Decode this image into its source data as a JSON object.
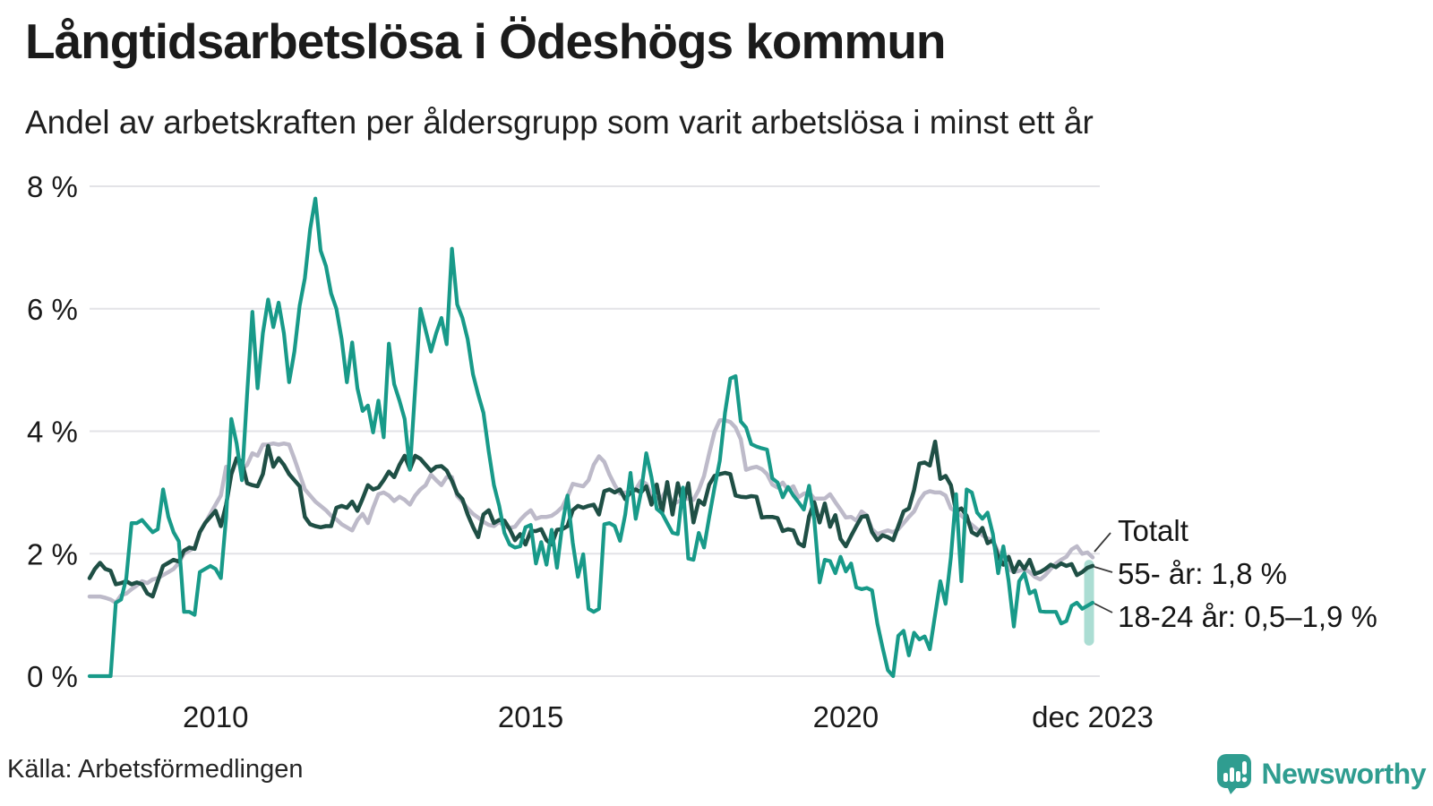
{
  "title": "Långtidsarbetslösa i Ödeshögs kommun",
  "subtitle": "Andel av arbetskraften per åldersgrupp som varit arbetslösa i minst ett år",
  "source": "Källa: Arbetsförmedlingen",
  "branding": {
    "name": "Newsworthy",
    "color": "#2f9d90",
    "icon": "bar-chart-speech-bubble"
  },
  "chart_data": {
    "type": "line",
    "unit": "%",
    "frequency": "monthly",
    "x_start": "2008-01",
    "x_end": "2023-12",
    "ylim": [
      0,
      8
    ],
    "grid": "horizontal",
    "legend_position": "end-of-line-labels",
    "yticks": [
      {
        "value": 0,
        "label": "0 %"
      },
      {
        "value": 2,
        "label": "2 %"
      },
      {
        "value": 4,
        "label": "4 %"
      },
      {
        "value": 6,
        "label": "6 %"
      },
      {
        "value": 8,
        "label": "8 %"
      }
    ],
    "xticks": [
      {
        "month_index": 24,
        "label": "2010"
      },
      {
        "month_index": 84,
        "label": "2015"
      },
      {
        "month_index": 144,
        "label": "2020"
      },
      {
        "month_index": 191,
        "label": "dec 2023"
      }
    ],
    "annotations": [
      {
        "series": "Totalt",
        "label": "Totalt"
      },
      {
        "series": "55- år",
        "label": "55- år: 1,8 %"
      },
      {
        "series": "18-24 år",
        "label": "18-24 år: 0,5–1,9 %"
      }
    ],
    "uncertainty_band": {
      "series": "18-24 år",
      "range": [
        0.5,
        1.9
      ],
      "color": "#a6dbd1"
    },
    "series": [
      {
        "name": "Totalt",
        "color": "#bdbac9",
        "stroke_width": 4.5,
        "values": [
          1.3,
          1.3,
          1.3,
          1.28,
          1.25,
          1.2,
          1.32,
          1.35,
          1.42,
          1.48,
          1.55,
          1.52,
          1.58,
          1.6,
          1.65,
          1.7,
          1.75,
          1.85,
          2.0,
          2.05,
          2.1,
          2.35,
          2.5,
          2.65,
          2.8,
          2.95,
          3.42,
          3.3,
          3.54,
          3.38,
          3.45,
          3.64,
          3.6,
          3.78,
          3.78,
          3.8,
          3.78,
          3.8,
          3.78,
          3.55,
          3.3,
          3.05,
          2.95,
          2.85,
          2.78,
          2.71,
          2.62,
          2.56,
          2.48,
          2.43,
          2.38,
          2.55,
          2.65,
          2.5,
          2.75,
          2.97,
          3.0,
          2.95,
          2.86,
          2.93,
          2.88,
          2.8,
          2.95,
          3.05,
          3.12,
          3.29,
          3.2,
          3.12,
          3.25,
          3.25,
          2.94,
          2.85,
          2.74,
          2.65,
          2.59,
          2.52,
          2.47,
          2.45,
          2.52,
          2.45,
          2.42,
          2.44,
          2.55,
          2.64,
          2.71,
          2.57,
          2.6,
          2.6,
          2.62,
          2.68,
          2.76,
          2.93,
          3.14,
          3.12,
          3.1,
          3.2,
          3.45,
          3.59,
          3.5,
          3.29,
          3.12,
          2.98,
          3.0,
          3.0,
          3.05,
          3.19,
          3.14,
          2.95,
          2.9,
          2.92,
          3.06,
          2.8,
          2.85,
          2.88,
          2.9,
          2.88,
          3.04,
          3.27,
          3.64,
          3.99,
          4.18,
          4.18,
          4.15,
          4.06,
          3.87,
          3.37,
          3.4,
          3.42,
          3.38,
          3.3,
          3.13,
          3.08,
          3.16,
          3.04,
          3.1,
          2.92,
          2.98,
          3.0,
          2.9,
          2.9,
          2.9,
          2.97,
          2.84,
          2.72,
          2.59,
          2.6,
          2.54,
          2.69,
          2.62,
          2.4,
          2.32,
          2.35,
          2.38,
          2.35,
          2.4,
          2.5,
          2.6,
          2.69,
          2.87,
          2.99,
          3.02,
          3.0,
          3.0,
          2.95,
          2.74,
          2.69,
          2.62,
          2.55,
          2.47,
          2.4,
          2.3,
          2.25,
          2.22,
          2.03,
          1.95,
          1.75,
          1.7,
          1.72,
          1.75,
          1.7,
          1.62,
          1.58,
          1.65,
          1.75,
          1.84,
          1.9,
          1.95,
          2.07,
          2.12,
          2.0,
          2.02,
          1.94
        ]
      },
      {
        "name": "55- år",
        "color": "#1f4f45",
        "stroke_width": 4.5,
        "values": [
          1.6,
          1.75,
          1.85,
          1.75,
          1.72,
          1.5,
          1.52,
          1.55,
          1.5,
          1.53,
          1.5,
          1.35,
          1.3,
          1.55,
          1.8,
          1.85,
          1.9,
          1.87,
          2.05,
          2.1,
          2.08,
          2.35,
          2.5,
          2.6,
          2.7,
          2.45,
          2.8,
          3.3,
          3.56,
          3.5,
          3.15,
          3.12,
          3.1,
          3.3,
          3.76,
          3.42,
          3.56,
          3.45,
          3.3,
          3.2,
          3.1,
          2.6,
          2.48,
          2.45,
          2.43,
          2.45,
          2.45,
          2.75,
          2.78,
          2.75,
          2.85,
          2.7,
          2.9,
          3.12,
          3.05,
          3.08,
          3.2,
          3.34,
          3.25,
          3.45,
          3.6,
          3.38,
          3.6,
          3.55,
          3.45,
          3.35,
          3.42,
          3.43,
          3.36,
          3.19,
          2.98,
          2.89,
          2.64,
          2.44,
          2.27,
          2.64,
          2.71,
          2.5,
          2.55,
          2.54,
          2.4,
          2.22,
          2.32,
          2.15,
          2.37,
          2.37,
          2.4,
          2.22,
          2.15,
          2.39,
          2.4,
          2.45,
          2.71,
          2.78,
          2.75,
          2.78,
          2.8,
          2.64,
          3.02,
          3.05,
          3.0,
          3.05,
          2.89,
          3.0,
          3.05,
          3.0,
          3.1,
          2.8,
          3.13,
          2.66,
          3.17,
          2.64,
          3.15,
          2.8,
          3.15,
          2.51,
          2.87,
          2.8,
          3.13,
          3.27,
          3.3,
          3.32,
          3.3,
          2.95,
          2.93,
          2.92,
          2.94,
          2.93,
          2.59,
          2.6,
          2.6,
          2.58,
          2.37,
          2.4,
          2.38,
          2.17,
          2.12,
          2.61,
          2.84,
          2.51,
          2.82,
          2.44,
          2.63,
          2.24,
          2.12,
          2.29,
          2.45,
          2.6,
          2.62,
          2.35,
          2.22,
          2.3,
          2.27,
          2.22,
          2.45,
          2.69,
          2.74,
          3.04,
          3.47,
          3.49,
          3.44,
          3.83,
          3.22,
          3.27,
          3.12,
          2.69,
          2.74,
          2.62,
          2.35,
          2.3,
          2.42,
          2.17,
          2.22,
          1.95,
          1.82,
          1.95,
          1.7,
          1.87,
          1.75,
          1.9,
          1.67,
          1.7,
          1.75,
          1.82,
          1.78,
          1.84,
          1.8,
          1.83,
          1.65,
          1.7,
          1.77,
          1.8
        ]
      },
      {
        "name": "18-24 år",
        "color": "#189a89",
        "stroke_width": 4.2,
        "values": [
          0.0,
          0.0,
          0.0,
          0.0,
          0.0,
          1.2,
          1.25,
          1.6,
          2.5,
          2.5,
          2.55,
          2.45,
          2.35,
          2.4,
          3.05,
          2.6,
          2.35,
          2.2,
          1.05,
          1.05,
          1.0,
          1.7,
          1.75,
          1.8,
          1.75,
          1.6,
          2.6,
          4.2,
          3.8,
          3.2,
          4.6,
          5.95,
          4.7,
          5.6,
          6.15,
          5.7,
          6.1,
          5.6,
          4.8,
          5.3,
          6.05,
          6.5,
          7.3,
          7.8,
          6.95,
          6.7,
          6.25,
          6.0,
          5.5,
          4.8,
          5.45,
          4.7,
          4.33,
          4.42,
          3.98,
          4.5,
          3.9,
          5.43,
          4.77,
          4.5,
          4.2,
          3.37,
          4.7,
          6.0,
          5.65,
          5.3,
          5.6,
          5.85,
          5.42,
          6.98,
          6.07,
          5.85,
          5.5,
          4.93,
          4.6,
          4.3,
          3.67,
          3.12,
          2.78,
          2.34,
          2.15,
          2.1,
          2.12,
          2.43,
          2.47,
          1.84,
          2.19,
          1.82,
          2.39,
          1.77,
          2.46,
          2.95,
          2.18,
          1.62,
          1.99,
          1.1,
          1.05,
          1.1,
          2.48,
          2.5,
          2.45,
          2.21,
          2.64,
          3.32,
          2.57,
          3.0,
          3.64,
          3.25,
          2.73,
          2.66,
          2.5,
          2.34,
          2.32,
          3.08,
          1.92,
          1.9,
          2.34,
          2.1,
          2.6,
          3.08,
          3.52,
          4.3,
          4.86,
          4.9,
          4.16,
          4.06,
          3.79,
          3.75,
          3.72,
          3.7,
          3.23,
          3.16,
          2.92,
          3.09,
          2.95,
          2.84,
          2.72,
          3.11,
          2.55,
          1.53,
          1.9,
          1.88,
          1.68,
          1.95,
          1.71,
          1.84,
          1.45,
          1.42,
          1.44,
          1.4,
          0.86,
          0.47,
          0.1,
          0.0,
          0.66,
          0.74,
          0.34,
          0.71,
          0.6,
          0.65,
          0.44,
          1.0,
          1.55,
          1.18,
          1.94,
          2.97,
          1.55,
          3.05,
          3.0,
          2.67,
          2.57,
          2.67,
          2.32,
          1.68,
          2.12,
          1.55,
          0.81,
          1.55,
          1.68,
          1.35,
          1.4,
          1.06,
          1.05,
          1.05,
          1.05,
          0.86,
          0.9,
          1.15,
          1.2,
          1.1,
          1.15,
          1.2
        ]
      }
    ]
  }
}
